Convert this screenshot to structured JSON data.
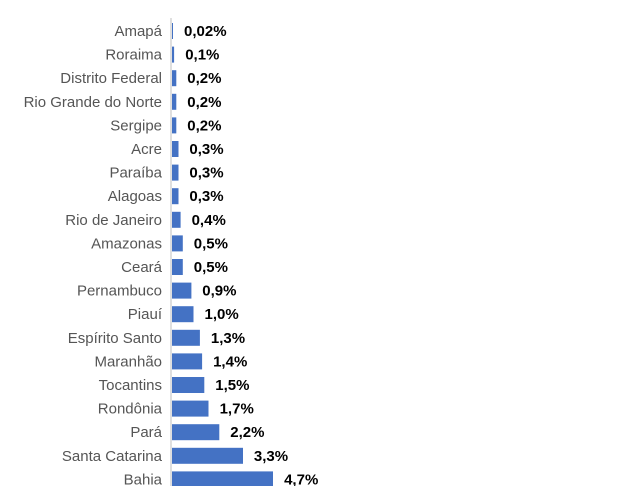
{
  "chart_data": {
    "type": "bar",
    "orientation": "horizontal",
    "title": "",
    "xlabel": "",
    "ylabel": "",
    "grid": false,
    "legend": "none",
    "bar_color": "#4472C4",
    "categories": [
      "Amapá",
      "Roraima",
      "Distrito Federal",
      "Rio Grande do Norte",
      "Sergipe",
      "Acre",
      "Paraíba",
      "Alagoas",
      "Rio de Janeiro",
      "Amazonas",
      "Ceará",
      "Pernambuco",
      "Piauí",
      "Espírito Santo",
      "Maranhão",
      "Tocantins",
      "Rondônia",
      "Pará",
      "Santa Catarina",
      "Bahia"
    ],
    "values": [
      0.02,
      0.1,
      0.2,
      0.2,
      0.2,
      0.3,
      0.3,
      0.3,
      0.4,
      0.5,
      0.5,
      0.9,
      1.0,
      1.3,
      1.4,
      1.5,
      1.7,
      2.2,
      3.3,
      4.7
    ],
    "value_labels": [
      "0,02%",
      "0,1%",
      "0,2%",
      "0,2%",
      "0,2%",
      "0,3%",
      "0,3%",
      "0,3%",
      "0,4%",
      "0,5%",
      "0,5%",
      "0,9%",
      "1,0%",
      "1,3%",
      "1,4%",
      "1,5%",
      "1,7%",
      "2,2%",
      "3,3%",
      "4,7%"
    ],
    "unit": "%"
  }
}
